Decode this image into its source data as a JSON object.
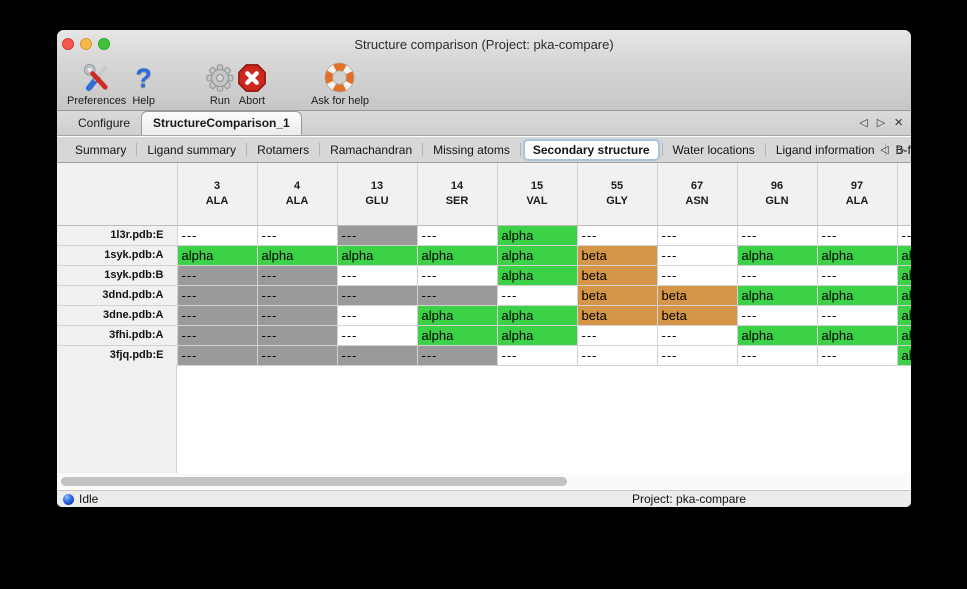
{
  "window": {
    "title": "Structure comparison (Project: pka-compare)"
  },
  "toolbar": {
    "items": [
      {
        "label": "Preferences",
        "icon": "tools-icon"
      },
      {
        "label": "Help",
        "icon": "help-icon"
      },
      {
        "label": "Run",
        "icon": "gear-icon"
      },
      {
        "label": "Abort",
        "icon": "abort-icon"
      },
      {
        "label": "Ask for help",
        "icon": "lifebuoy-icon"
      }
    ]
  },
  "main_tabs": {
    "items": [
      {
        "label": "Configure",
        "selected": false
      },
      {
        "label": "StructureComparison_1",
        "selected": true
      }
    ],
    "controls": [
      {
        "name": "tab-scroll-left-icon",
        "glyph": "◁"
      },
      {
        "name": "tab-scroll-right-icon",
        "glyph": "▷"
      },
      {
        "name": "tab-close-icon",
        "glyph": "×"
      }
    ]
  },
  "sub_tabs": {
    "items": [
      {
        "label": "Summary",
        "selected": false
      },
      {
        "label": "Ligand summary",
        "selected": false
      },
      {
        "label": "Rotamers",
        "selected": false
      },
      {
        "label": "Ramachandran",
        "selected": false
      },
      {
        "label": "Missing atoms",
        "selected": false
      },
      {
        "label": "Secondary structure",
        "selected": true
      },
      {
        "label": "Water locations",
        "selected": false
      },
      {
        "label": "Ligand information",
        "selected": false
      },
      {
        "label": "B-factors",
        "selected": false
      }
    ],
    "controls": [
      {
        "name": "subtab-scroll-left-icon",
        "glyph": "◁"
      },
      {
        "name": "subtab-scroll-right-icon",
        "glyph": "▷"
      }
    ]
  },
  "table": {
    "columns": [
      {
        "number": "3",
        "residue": "ALA"
      },
      {
        "number": "4",
        "residue": "ALA"
      },
      {
        "number": "13",
        "residue": "GLU"
      },
      {
        "number": "14",
        "residue": "SER"
      },
      {
        "number": "15",
        "residue": "VAL"
      },
      {
        "number": "55",
        "residue": "GLY"
      },
      {
        "number": "67",
        "residue": "ASN"
      },
      {
        "number": "96",
        "residue": "GLN"
      },
      {
        "number": "97",
        "residue": "ALA"
      },
      {
        "number": "",
        "residue": ""
      }
    ],
    "cell_colors": {
      "alpha": "#3dd148",
      "beta": "#d49646",
      "gap": "#9a9a9a",
      "blank": "#ffffff"
    },
    "rows": [
      {
        "label": "1l3r.pdb:E",
        "cells": [
          {
            "t": "---",
            "s": "blank"
          },
          {
            "t": "---",
            "s": "blank"
          },
          {
            "t": "---",
            "s": "gap"
          },
          {
            "t": "---",
            "s": "blank"
          },
          {
            "t": "alpha",
            "s": "alpha"
          },
          {
            "t": "---",
            "s": "blank"
          },
          {
            "t": "---",
            "s": "blank"
          },
          {
            "t": "---",
            "s": "blank"
          },
          {
            "t": "---",
            "s": "blank"
          },
          {
            "t": "--",
            "s": "blank"
          }
        ]
      },
      {
        "label": "1syk.pdb:A",
        "cells": [
          {
            "t": "alpha",
            "s": "alpha"
          },
          {
            "t": "alpha",
            "s": "alpha"
          },
          {
            "t": "alpha",
            "s": "alpha"
          },
          {
            "t": "alpha",
            "s": "alpha"
          },
          {
            "t": "alpha",
            "s": "alpha"
          },
          {
            "t": "beta",
            "s": "beta"
          },
          {
            "t": "---",
            "s": "blank"
          },
          {
            "t": "alpha",
            "s": "alpha"
          },
          {
            "t": "alpha",
            "s": "alpha"
          },
          {
            "t": "al",
            "s": "alpha"
          }
        ]
      },
      {
        "label": "1syk.pdb:B",
        "cells": [
          {
            "t": "---",
            "s": "gap"
          },
          {
            "t": "---",
            "s": "gap"
          },
          {
            "t": "---",
            "s": "blank"
          },
          {
            "t": "---",
            "s": "blank"
          },
          {
            "t": "alpha",
            "s": "alpha"
          },
          {
            "t": "beta",
            "s": "beta"
          },
          {
            "t": "---",
            "s": "blank"
          },
          {
            "t": "---",
            "s": "blank"
          },
          {
            "t": "---",
            "s": "blank"
          },
          {
            "t": "al",
            "s": "alpha"
          }
        ]
      },
      {
        "label": "3dnd.pdb:A",
        "cells": [
          {
            "t": "---",
            "s": "gap"
          },
          {
            "t": "---",
            "s": "gap"
          },
          {
            "t": "---",
            "s": "gap"
          },
          {
            "t": "---",
            "s": "gap"
          },
          {
            "t": "---",
            "s": "blank"
          },
          {
            "t": "beta",
            "s": "beta"
          },
          {
            "t": "beta",
            "s": "beta"
          },
          {
            "t": "alpha",
            "s": "alpha"
          },
          {
            "t": "alpha",
            "s": "alpha"
          },
          {
            "t": "al",
            "s": "alpha"
          }
        ]
      },
      {
        "label": "3dne.pdb:A",
        "cells": [
          {
            "t": "---",
            "s": "gap"
          },
          {
            "t": "---",
            "s": "gap"
          },
          {
            "t": "---",
            "s": "blank"
          },
          {
            "t": "alpha",
            "s": "alpha"
          },
          {
            "t": "alpha",
            "s": "alpha"
          },
          {
            "t": "beta",
            "s": "beta"
          },
          {
            "t": "beta",
            "s": "beta"
          },
          {
            "t": "---",
            "s": "blank"
          },
          {
            "t": "---",
            "s": "blank"
          },
          {
            "t": "al",
            "s": "alpha"
          }
        ]
      },
      {
        "label": "3fhi.pdb:A",
        "cells": [
          {
            "t": "---",
            "s": "gap"
          },
          {
            "t": "---",
            "s": "gap"
          },
          {
            "t": "---",
            "s": "blank"
          },
          {
            "t": "alpha",
            "s": "alpha"
          },
          {
            "t": "alpha",
            "s": "alpha"
          },
          {
            "t": "---",
            "s": "blank"
          },
          {
            "t": "---",
            "s": "blank"
          },
          {
            "t": "alpha",
            "s": "alpha"
          },
          {
            "t": "alpha",
            "s": "alpha"
          },
          {
            "t": "al",
            "s": "alpha"
          }
        ]
      },
      {
        "label": "3fjq.pdb:E",
        "cells": [
          {
            "t": "---",
            "s": "gap"
          },
          {
            "t": "---",
            "s": "gap"
          },
          {
            "t": "---",
            "s": "gap"
          },
          {
            "t": "---",
            "s": "gap"
          },
          {
            "t": "---",
            "s": "blank"
          },
          {
            "t": "---",
            "s": "blank"
          },
          {
            "t": "---",
            "s": "blank"
          },
          {
            "t": "---",
            "s": "blank"
          },
          {
            "t": "---",
            "s": "blank"
          },
          {
            "t": "al",
            "s": "alpha"
          }
        ]
      }
    ]
  },
  "statusbar": {
    "status": "Idle",
    "project": "Project: pka-compare"
  }
}
